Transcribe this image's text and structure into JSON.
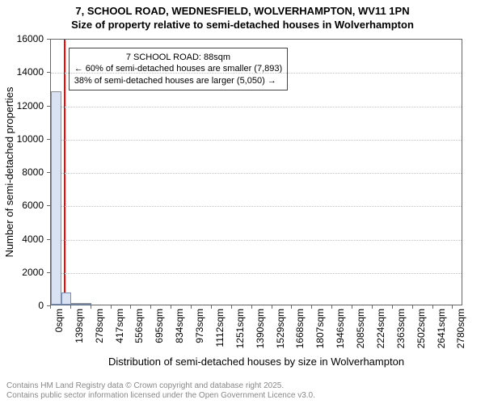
{
  "chart": {
    "type": "histogram",
    "title_line1": "7, SCHOOL ROAD, WEDNESFIELD, WOLVERHAMPTON, WV11 1PN",
    "title_line2": "Size of property relative to semi-detached houses in Wolverhampton",
    "xlabel": "Distribution of semi-detached houses by size in Wolverhampton",
    "ylabel": "Number of semi-detached properties",
    "background_color": "#ffffff",
    "grid_color": "#c0c0c0",
    "axis_color": "#666666",
    "bar_fill": "#d9e2f2",
    "bar_border": "#7a8fb5",
    "marker_color": "#ff0000",
    "marker_x_value": 88,
    "x_min": 0,
    "x_max": 2850,
    "x_tick_start": 0,
    "x_tick_step": 139,
    "x_tick_count": 21,
    "x_tick_suffix": "sqm",
    "y_min": 0,
    "y_max": 16000,
    "y_tick_step": 2000,
    "bar_width_units": 70,
    "bars_start": 0,
    "bar_heights": [
      12800,
      750,
      30,
      10,
      0,
      0,
      0,
      0,
      0,
      0,
      0,
      0,
      0,
      0,
      0,
      0,
      0,
      0,
      0,
      0
    ],
    "annotation": {
      "line1": "7 SCHOOL ROAD: 88sqm",
      "line2": "← 60% of semi-detached houses are smaller (7,893)",
      "line3": "38% of semi-detached houses are larger (5,050) →",
      "box_border": "#444444",
      "box_bg": "#ffffff",
      "font_size": 11
    },
    "title_fontsize": 13,
    "label_fontsize": 13,
    "tick_fontsize": 12
  },
  "footer": {
    "line1": "Contains HM Land Registry data © Crown copyright and database right 2025.",
    "line2": "Contains public sector information licensed under the Open Government Licence v3.0.",
    "color": "#888888",
    "fontsize": 10
  }
}
